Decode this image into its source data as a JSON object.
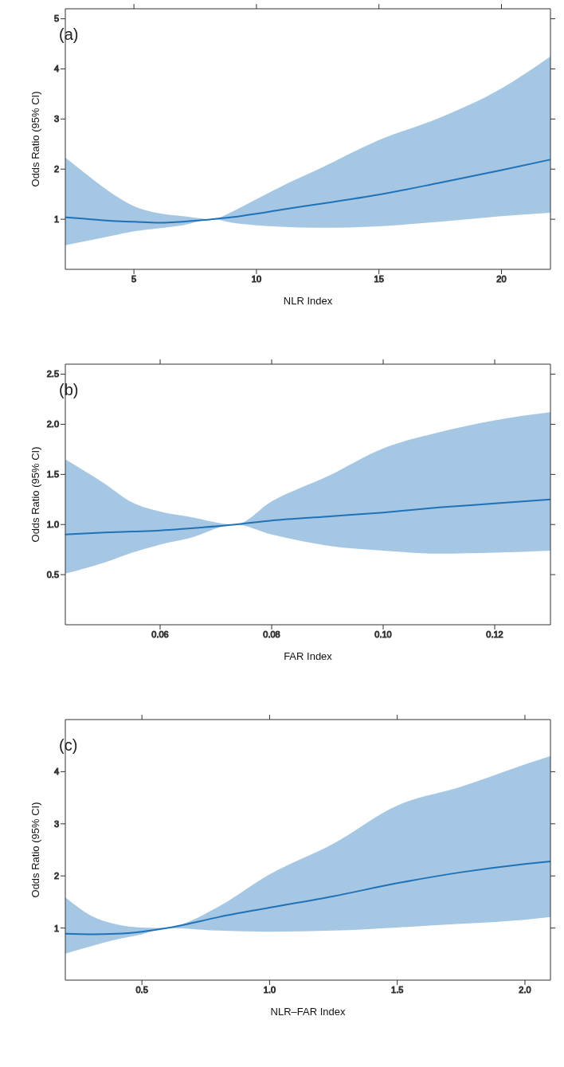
{
  "chart_data": [
    {
      "type": "line",
      "xlabel": "NLR Index",
      "ylabel": "Odds Ratio (95% CI)",
      "annotations": [
        "(a)"
      ],
      "xlim": [
        2.2,
        22
      ],
      "xticks": [
        5,
        10,
        15,
        20
      ],
      "ylim": [
        0,
        5.2
      ],
      "yticks": [
        1,
        2,
        3,
        4,
        5
      ],
      "x": [
        2.2,
        3,
        4,
        5,
        6,
        7,
        8.2,
        9,
        10,
        11,
        12.5,
        15,
        17.5,
        20,
        22
      ],
      "series": [
        {
          "color": "#1f72b8",
          "values": [
            1.04,
            1.01,
            0.97,
            0.95,
            0.93,
            0.95,
            1.0,
            1.04,
            1.11,
            1.19,
            1.3,
            1.49,
            1.73,
            1.98,
            2.19
          ],
          "upper": [
            2.23,
            1.92,
            1.55,
            1.26,
            1.12,
            1.06,
            1.0,
            1.15,
            1.4,
            1.65,
            1.99,
            2.58,
            3.03,
            3.61,
            4.25
          ],
          "lower": [
            0.48,
            0.56,
            0.66,
            0.76,
            0.82,
            0.88,
            1.0,
            0.93,
            0.88,
            0.85,
            0.83,
            0.86,
            0.95,
            1.06,
            1.13
          ]
        }
      ]
    },
    {
      "type": "line",
      "xlabel": "FAR Index",
      "ylabel": "Odds Ratio (95% CI)",
      "annotations": [
        "(b)"
      ],
      "xlim": [
        0.043,
        0.13
      ],
      "xticks": [
        0.06,
        0.08,
        {
          "value": 0.1,
          "label": "0.10"
        },
        0.12
      ],
      "ylim": [
        0,
        2.6
      ],
      "yticks": [
        0.5,
        {
          "value": 1,
          "label": "1.0"
        },
        1.5,
        {
          "value": 2,
          "label": "2.0"
        },
        2.5
      ],
      "x": [
        0.043,
        0.05,
        0.055,
        0.06,
        0.065,
        0.0735,
        0.08,
        0.09,
        0.1,
        0.11,
        0.12,
        0.13
      ],
      "series": [
        {
          "color": "#1f72b8",
          "values": [
            0.9,
            0.92,
            0.93,
            0.94,
            0.96,
            1.0,
            1.04,
            1.08,
            1.12,
            1.17,
            1.21,
            1.25
          ],
          "upper": [
            1.65,
            1.41,
            1.22,
            1.13,
            1.08,
            1.0,
            1.23,
            1.48,
            1.76,
            1.92,
            2.04,
            2.12
          ],
          "lower": [
            0.51,
            0.62,
            0.72,
            0.8,
            0.86,
            1.0,
            0.9,
            0.79,
            0.74,
            0.71,
            0.72,
            0.74
          ]
        }
      ]
    },
    {
      "type": "line",
      "xlabel": "NLR–FAR Index",
      "ylabel": "Odds Ratio (95% CI)",
      "annotations": [
        "(c)"
      ],
      "xlim": [
        0.2,
        2.1
      ],
      "xticks": [
        0.5,
        {
          "value": 1,
          "label": "1.0"
        },
        1.5,
        {
          "value": 2,
          "label": "2.0"
        }
      ],
      "ylim": [
        0,
        5
      ],
      "yticks": [
        1,
        2,
        3,
        4
      ],
      "x": [
        0.2,
        0.3,
        0.4,
        0.5,
        0.6,
        0.7,
        0.8,
        1.0,
        1.25,
        1.5,
        1.75,
        2.0,
        2.1
      ],
      "series": [
        {
          "color": "#1f72b8",
          "values": [
            0.89,
            0.88,
            0.89,
            0.93,
            1.0,
            1.1,
            1.21,
            1.39,
            1.61,
            1.86,
            2.07,
            2.23,
            2.28
          ],
          "upper": [
            1.59,
            1.24,
            1.07,
            1.01,
            1.0,
            1.16,
            1.41,
            2.03,
            2.62,
            3.35,
            3.71,
            4.14,
            4.3
          ],
          "lower": [
            0.51,
            0.65,
            0.78,
            0.88,
            1.0,
            0.98,
            0.95,
            0.93,
            0.95,
            1.01,
            1.08,
            1.16,
            1.21
          ]
        }
      ]
    }
  ]
}
